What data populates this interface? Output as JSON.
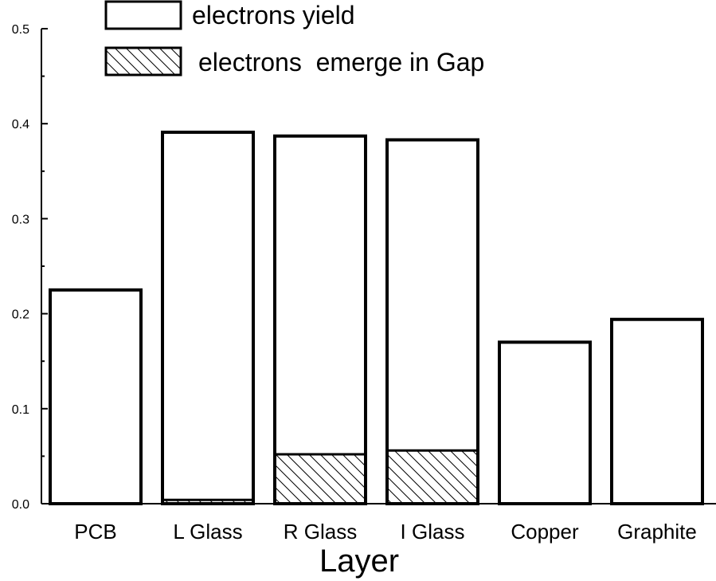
{
  "chart_data": {
    "type": "bar",
    "categories": [
      "PCB",
      "L Glass",
      "R Glass",
      "I Glass",
      "Copper",
      "Graphite"
    ],
    "series": [
      {
        "name": "electrons yield",
        "values": [
          0.225,
          0.391,
          0.387,
          0.383,
          0.17,
          0.194
        ],
        "fill": "none"
      },
      {
        "name": "electrons  emerge in Gap",
        "values": [
          0.0,
          0.004,
          0.052,
          0.056,
          0.0,
          0.0
        ],
        "fill": "hatched"
      }
    ],
    "title": "",
    "xlabel": "Layer",
    "ylabel": "",
    "ylim": [
      0.0,
      0.5
    ],
    "yticks": [
      "0.0",
      "0.1",
      "0.2",
      "0.3",
      "0.4",
      "0.5"
    ],
    "grid": false,
    "legend_position": "top-center",
    "bar_layout": "overlaid",
    "colors": {
      "stroke": "#000000",
      "background": "#ffffff",
      "hatch": "#000000"
    }
  }
}
